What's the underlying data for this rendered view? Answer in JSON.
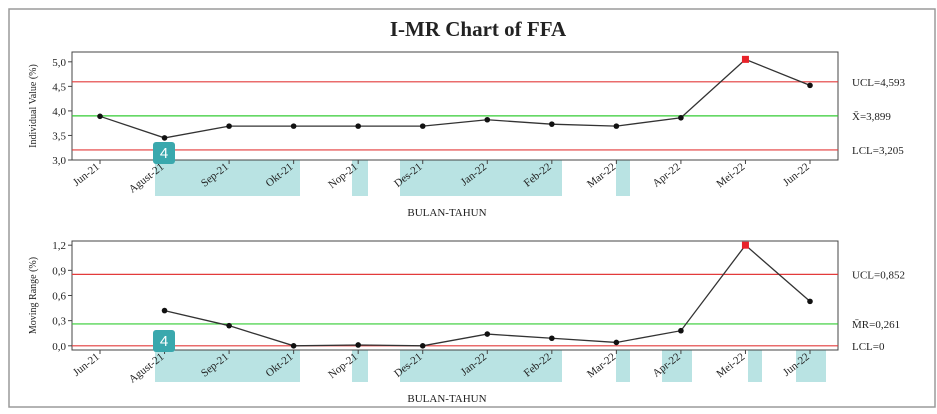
{
  "chart_data": [
    {
      "type": "line",
      "title": "I-MR Chart of FFA",
      "xlabel": "BULAN-TAHUN",
      "ylabel": "Individual Value (%)",
      "categories": [
        "Jun-21",
        "Agust-21",
        "Sep-21",
        "Okt-21",
        "Nop-21",
        "Des-21",
        "Jan-22",
        "Feb-22",
        "Mar-22",
        "Apr-22",
        "Mei-22",
        "Jun-22"
      ],
      "series": [
        {
          "values": [
            3.89,
            3.45,
            3.69,
            3.69,
            3.69,
            3.69,
            3.82,
            3.73,
            3.69,
            3.86,
            5.05,
            4.52
          ]
        }
      ],
      "ylim": [
        3.0,
        5.2
      ],
      "yticks": [
        "3,0",
        "3,5",
        "4,0",
        "4,5",
        "5,0"
      ],
      "out_of_control_index": [
        10
      ],
      "control_lines": {
        "ucl": {
          "value": 4.593,
          "label": "UCL=4,593",
          "color": "#e33b3b"
        },
        "center": {
          "value": 3.899,
          "label": "X̄=3,899",
          "color": "#33cc33"
        },
        "lcl": {
          "value": 3.205,
          "label": "LCL=3,205",
          "color": "#e33b3b"
        }
      },
      "grid": false
    },
    {
      "type": "line",
      "xlabel": "BULAN-TAHUN",
      "ylabel": "Moving Range (%)",
      "categories": [
        "Jun-21",
        "Agust-21",
        "Sep-21",
        "Okt-21",
        "Nop-21",
        "Des-21",
        "Jan-22",
        "Feb-22",
        "Mar-22",
        "Apr-22",
        "Mei-22",
        "Jun-22"
      ],
      "series": [
        {
          "values": [
            null,
            0.42,
            0.24,
            0.0,
            0.01,
            0.0,
            0.14,
            0.09,
            0.04,
            0.18,
            1.2,
            0.53
          ]
        }
      ],
      "ylim": [
        -0.05,
        1.25
      ],
      "yticks": [
        "0,0",
        "0,3",
        "0,6",
        "0,9",
        "1,2"
      ],
      "out_of_control_index": [
        10
      ],
      "control_lines": {
        "ucl": {
          "value": 0.852,
          "label": "UCL=0,852",
          "color": "#e33b3b"
        },
        "center": {
          "value": 0.261,
          "label": "M̄R=0,261",
          "color": "#33cc33"
        },
        "lcl": {
          "value": 0.0,
          "label": "LCL=0",
          "color": "#e33b3b"
        }
      },
      "grid": false
    }
  ],
  "overlay": {
    "badge_text": "4",
    "badge_color": "#3aa8ad",
    "highlight_color": "#b9e3e3"
  },
  "colors": {
    "line": "#333333",
    "point": "#111111",
    "out_of_control_point": "#e8232a",
    "plot_border": "#444444"
  }
}
